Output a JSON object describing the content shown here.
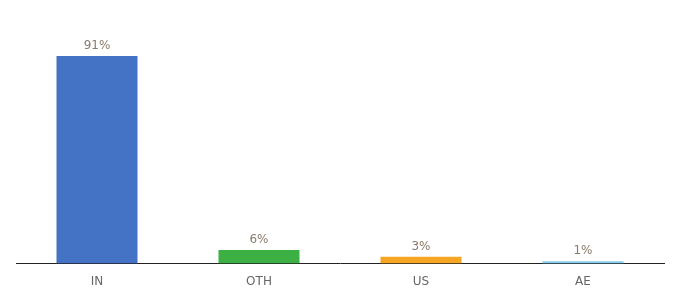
{
  "chart_data": {
    "type": "bar",
    "categories": [
      "IN",
      "OTH",
      "US",
      "AE"
    ],
    "values": [
      91,
      6,
      3,
      1
    ],
    "value_labels": [
      "91%",
      "6%",
      "3%",
      "1%"
    ],
    "data_labels": true,
    "colors": [
      "#4472c4",
      "#3cb043",
      "#f5a623",
      "#87ceeb"
    ],
    "ylim": [
      0,
      105
    ],
    "grid": false,
    "tick_labels": "x"
  }
}
